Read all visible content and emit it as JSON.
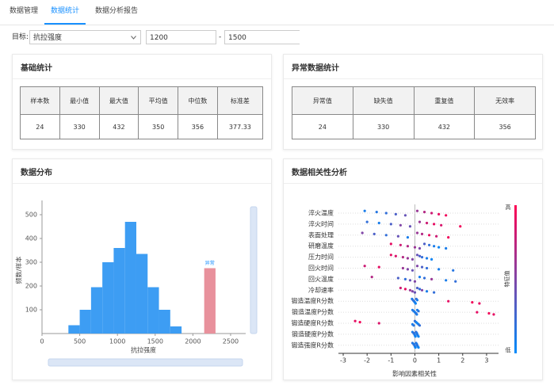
{
  "tabs": [
    "数据管理",
    "数据统计",
    "数据分析报告"
  ],
  "active_tab": 1,
  "filter": {
    "label": "目标:",
    "target": "抗拉强度",
    "min": "1200",
    "separator": "-",
    "max": "1500"
  },
  "basic_stats": {
    "title": "基础统计",
    "headers": [
      "样本数",
      "最小值",
      "最大值",
      "平均值",
      "中位数",
      "标准差"
    ],
    "rows": [
      [
        "24",
        "330",
        "432",
        "350",
        "356",
        "377.33"
      ]
    ]
  },
  "anomaly_stats": {
    "title": "异常数据统计",
    "headers": [
      "异常值",
      "缺失值",
      "重复值",
      "无效率"
    ],
    "rows": [
      [
        "24",
        "330",
        "432",
        "356"
      ]
    ]
  },
  "distribution": {
    "title": "数据分布",
    "chart": {
      "type": "histogram",
      "x_label": "抗拉强度",
      "y_label": "频数/样本",
      "color": "#3d9df3",
      "bins": [
        350,
        500,
        650,
        800,
        950,
        1100,
        1250,
        1400,
        1550,
        1700,
        1850
      ],
      "counts": [
        35,
        100,
        195,
        300,
        360,
        470,
        335,
        195,
        100,
        30
      ],
      "outlier": {
        "label": "异常",
        "bins": [
          2150,
          2300
        ],
        "count": 275,
        "color": "#e8919c"
      },
      "xlim": [
        0,
        2700
      ],
      "ylim": [
        0,
        560
      ],
      "xticks": [
        0,
        500,
        1000,
        1500,
        2000,
        2500
      ],
      "yticks": [
        100,
        200,
        300,
        400,
        500
      ]
    }
  },
  "correlation": {
    "title": "数据相关性分析",
    "chart": {
      "type": "beeswarm",
      "x_label": "影响因素相关性",
      "color_label": "特征值",
      "color_high": "高",
      "color_low": "低",
      "cmap": [
        "#008bfb",
        "#ff0052"
      ],
      "xlim": [
        -3.2,
        3.5
      ],
      "xticks": [
        -3,
        -2,
        -1,
        0,
        1,
        2,
        3
      ],
      "series": [
        {
          "name": "淬火温度",
          "values": [
            -2.1,
            -1.6,
            -1.2,
            -0.8,
            -0.4,
            0.1,
            0.4,
            0.7,
            1.0,
            1.3
          ],
          "feature_values": [
            0.1,
            0.15,
            0.2,
            0.3,
            0.4,
            0.6,
            0.7,
            0.8,
            0.9,
            0.95
          ]
        },
        {
          "name": "淬火时间",
          "values": [
            -2.0,
            -1.5,
            -1.0,
            -0.6,
            -0.2,
            0.2,
            0.5,
            0.8,
            1.1,
            1.9
          ],
          "feature_values": [
            0.2,
            0.1,
            0.3,
            0.5,
            0.4,
            0.6,
            0.8,
            0.9,
            0.85,
            0.95
          ]
        },
        {
          "name": "表面处理",
          "values": [
            -2.2,
            -1.7,
            -1.2,
            -0.7,
            -0.3,
            0.1,
            0.3,
            0.6,
            0.9,
            1.4
          ],
          "feature_values": [
            0.5,
            0.3,
            0.2,
            0.4,
            0.1,
            0.6,
            0.7,
            0.9,
            0.8,
            0.95
          ]
        },
        {
          "name": "研磨温度",
          "values": [
            -1.0,
            -0.6,
            -0.3,
            0,
            0.2,
            0.4,
            0.6,
            0.8,
            1.0,
            1.3
          ],
          "feature_values": [
            0.9,
            0.8,
            0.7,
            0.6,
            0.5,
            0.3,
            0.2,
            0.1,
            0.05,
            0.1
          ]
        },
        {
          "name": "压力时间",
          "values": [
            -1.0,
            -0.8,
            -0.5,
            -0.3,
            -0.1,
            0.1,
            0.2,
            0.3,
            0.5,
            0.7
          ],
          "feature_values": [
            0.9,
            0.85,
            0.7,
            0.6,
            0.5,
            0.4,
            0.3,
            0.2,
            0.1,
            0.05
          ]
        },
        {
          "name": "回火时间",
          "values": [
            -2.1,
            -1.5,
            -0.5,
            -0.3,
            -0.1,
            0.1,
            0.3,
            0.5,
            1.0,
            1.6
          ],
          "feature_values": [
            0.8,
            0.9,
            0.6,
            0.5,
            0.4,
            0.5,
            0.3,
            0.2,
            0.1,
            0.15
          ]
        },
        {
          "name": "回火温度",
          "values": [
            -1.8,
            -0.7,
            -0.4,
            -0.2,
            0,
            0.2,
            0.4,
            0.7,
            1.3,
            1.7
          ],
          "feature_values": [
            0.7,
            0.3,
            0.2,
            0.4,
            0.5,
            0.1,
            0.2,
            0.6,
            0.1,
            0.2
          ]
        },
        {
          "name": "冷却速率",
          "values": [
            -0.6,
            -0.4,
            -0.2,
            -0.1,
            0,
            0.1,
            0.2,
            0.3,
            0.5,
            0.8
          ],
          "feature_values": [
            0.8,
            0.9,
            0.6,
            0.5,
            0.4,
            0.3,
            0.2,
            0.5,
            0.1,
            0.2
          ]
        },
        {
          "name": "锻造温度R分数",
          "values": [
            -0.12,
            -0.08,
            -0.04,
            0,
            0.03,
            0.06,
            0.1,
            1.4,
            2.4,
            2.7
          ],
          "feature_values": [
            0.1,
            0.2,
            0.15,
            0.1,
            0.05,
            0.2,
            0.1,
            0.9,
            0.95,
            0.9
          ]
        },
        {
          "name": "锻造温度P分数",
          "values": [
            -0.1,
            -0.05,
            0,
            0.05,
            0.08,
            0.1,
            0.15,
            2.6,
            3.1,
            3.3
          ],
          "feature_values": [
            0.1,
            0.15,
            0.05,
            0.2,
            0.1,
            0.1,
            0.15,
            0.9,
            0.95,
            0.9
          ]
        },
        {
          "name": "锻造硬度R分数",
          "values": [
            -2.5,
            -2.3,
            -1.5,
            -0.1,
            -0.05,
            0,
            0.05,
            0.1,
            0.15,
            0.2
          ],
          "feature_values": [
            0.9,
            0.95,
            0.85,
            0.1,
            0.15,
            0.2,
            0.1,
            0.05,
            0.1,
            0.2
          ]
        },
        {
          "name": "锻造硬度P分数",
          "values": [
            -0.1,
            -0.05,
            -0.02,
            0,
            0.02,
            0.05,
            0.08,
            0.1,
            0.12,
            0.15
          ],
          "feature_values": [
            0.1,
            0.2,
            0.15,
            0.1,
            0.05,
            0.2,
            0.1,
            0.15,
            0.1,
            0.05
          ]
        },
        {
          "name": "锻造强度R分数",
          "values": [
            -0.1,
            -0.05,
            -0.02,
            0,
            0.02,
            0.05,
            0.08,
            0.1,
            0.12,
            0.15
          ],
          "feature_values": [
            0.15,
            0.1,
            0.2,
            0.1,
            0.05,
            0.15,
            0.1,
            0.2,
            0.1,
            0.05
          ]
        }
      ]
    }
  }
}
